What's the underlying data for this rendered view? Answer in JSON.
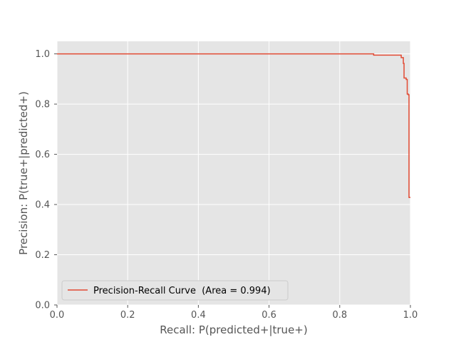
{
  "chart_data": {
    "type": "line",
    "title": "",
    "xlabel": "Recall: P(predicted+|true+)",
    "ylabel": "Precision: P(true+|predicted+)",
    "xlim": [
      0.0,
      1.0
    ],
    "ylim": [
      0.0,
      1.05
    ],
    "x_ticks": [
      "0.0",
      "0.2",
      "0.4",
      "0.6",
      "0.8",
      "1.0"
    ],
    "y_ticks": [
      "0.0",
      "0.2",
      "0.4",
      "0.6",
      "0.8",
      "1.0"
    ],
    "grid": true,
    "legend_position": "lower-left",
    "series": [
      {
        "name": "Precision-Recall Curve  (Area = 0.994)",
        "color": "#E24A33",
        "step": "post",
        "x": [
          0.0,
          0.893,
          0.896,
          0.966,
          0.974,
          0.98,
          0.982,
          0.988,
          0.991,
          0.994,
          0.996
        ],
        "y": [
          1.0,
          1.0,
          0.995,
          0.995,
          0.985,
          0.962,
          0.904,
          0.898,
          0.84,
          0.837,
          0.428
        ]
      }
    ]
  }
}
